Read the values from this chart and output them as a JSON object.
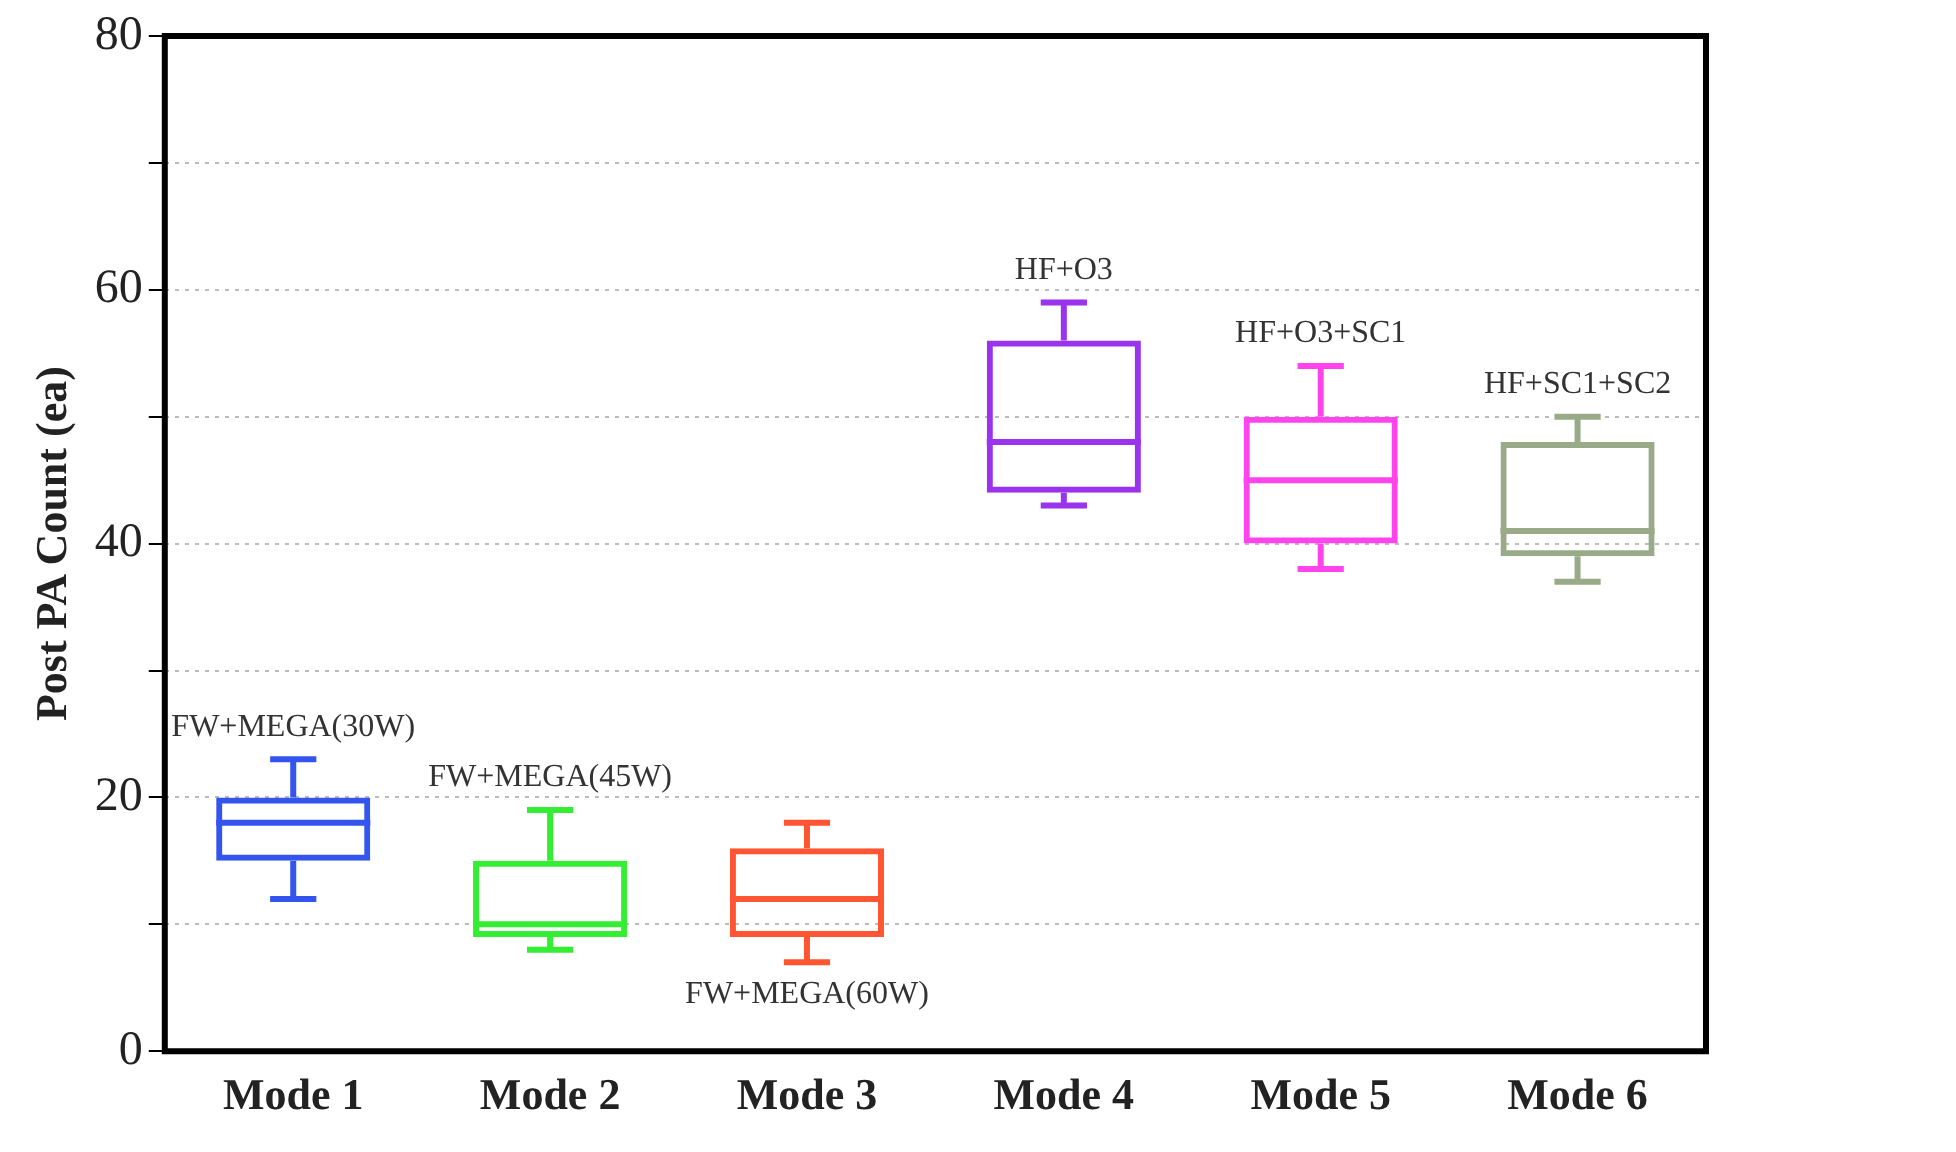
{
  "chart_data": {
    "type": "box",
    "ylabel": "Post PA Count (ea)",
    "categories": [
      "Mode 1",
      "Mode 2",
      "Mode 3",
      "Mode 4",
      "Mode 5",
      "Mode 6"
    ],
    "colors": [
      "#3355ee",
      "#33ee33",
      "#ff5533",
      "#9933ee",
      "#ff44ee",
      "#99aa88"
    ],
    "boxes": [
      {
        "low": 12,
        "q1": 15,
        "median": 18,
        "q3": 20,
        "high": 23
      },
      {
        "low": 8,
        "q1": 9,
        "median": 10,
        "q3": 15,
        "high": 19
      },
      {
        "low": 7,
        "q1": 9,
        "median": 12,
        "q3": 16,
        "high": 18
      },
      {
        "low": 43,
        "q1": 44,
        "median": 48,
        "q3": 56,
        "high": 59
      },
      {
        "low": 38,
        "q1": 40,
        "median": 45,
        "q3": 50,
        "high": 54
      },
      {
        "low": 37,
        "q1": 39,
        "median": 41,
        "q3": 48,
        "high": 50
      }
    ],
    "ylim": [
      0,
      80
    ],
    "yticks": [
      0,
      {
        "value": 10,
        "label": null
      },
      20,
      {
        "value": 30,
        "label": null
      },
      40,
      {
        "value": 50,
        "label": null
      },
      60,
      {
        "value": 70,
        "label": null
      },
      80
    ],
    "grid": "y",
    "annotations": [
      "FW+MEGA(30W)",
      "FW+MEGA(45W)",
      "FW+MEGA(60W)",
      "HF+O3",
      "HF+O3+SC1",
      "HF+SC1+SC2"
    ]
  }
}
